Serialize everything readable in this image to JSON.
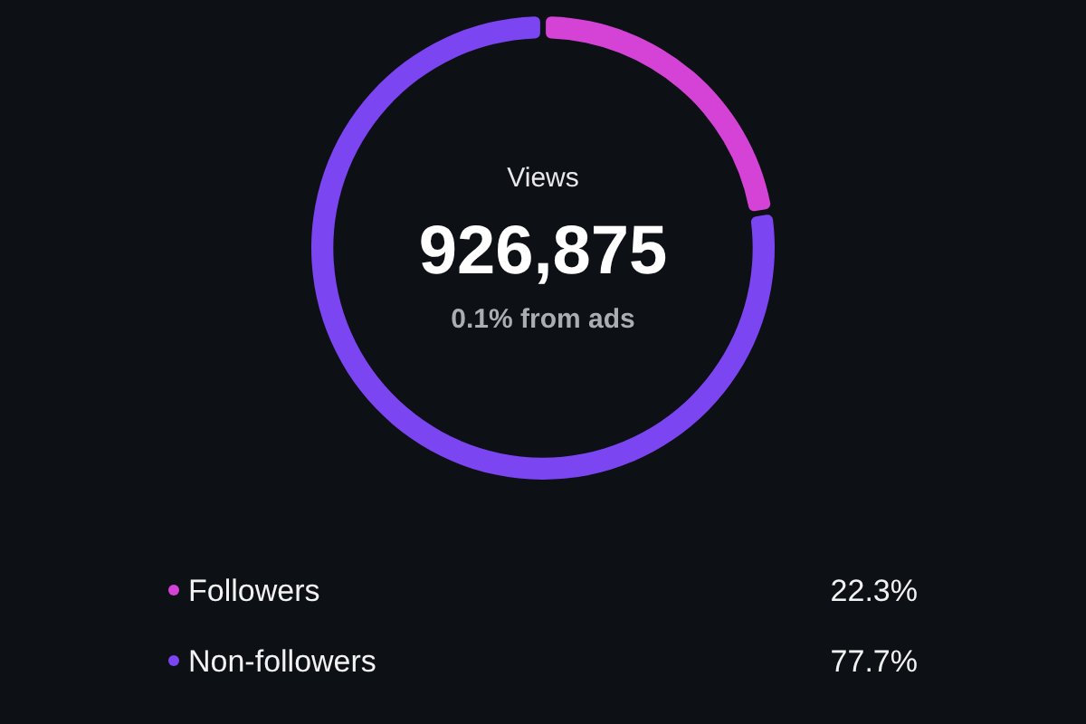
{
  "chart_data": {
    "type": "donut",
    "title": "Views",
    "annotations": [
      "926,875",
      "0.1% from ads"
    ],
    "categories": [
      "Followers",
      "Non-followers"
    ],
    "values": [
      22.3,
      77.7
    ],
    "colors": [
      "#d543d6",
      "#7b45f2"
    ],
    "value_labels": [
      "22.3%",
      "77.7%"
    ],
    "legend": "bottom"
  }
}
